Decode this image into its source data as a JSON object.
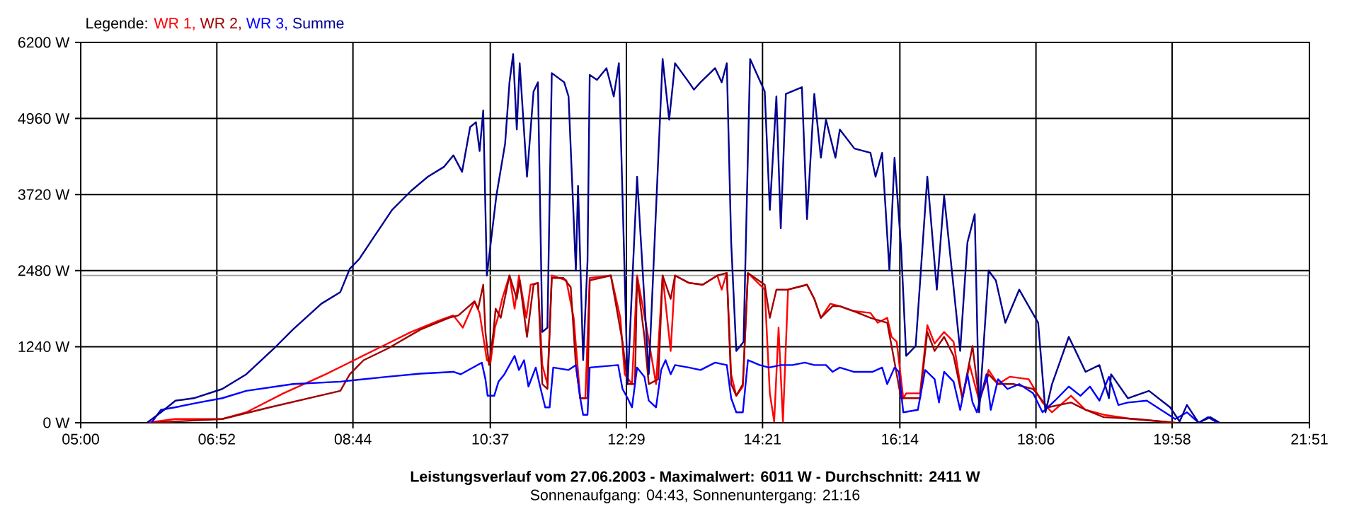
{
  "chart_data": {
    "type": "line",
    "title": "Leistungsverlauf vom 27.06.2003 - Maximalwert: 6011 W - Durchschnitt: 2411 W",
    "subtitle": "Sonnenaufgang: 04:43, Sonnenuntergang: 21:16",
    "legend_title": "Legende:",
    "legend": "top left",
    "grid": true,
    "xlim": [
      5,
      21.85
    ],
    "xticks": [
      {
        "value": 5,
        "label": "05:00"
      },
      {
        "value": 6.8667,
        "label": "06:52"
      },
      {
        "value": 8.7333,
        "label": "08:44"
      },
      {
        "value": 10.6167,
        "label": "10:37"
      },
      {
        "value": 12.4833,
        "label": "12:29"
      },
      {
        "value": 14.35,
        "label": "14:21"
      },
      {
        "value": 16.2333,
        "label": "16:14"
      },
      {
        "value": 18.1,
        "label": "18:06"
      },
      {
        "value": 19.9667,
        "label": "19:58"
      },
      {
        "value": 21.85,
        "label": "21:51"
      }
    ],
    "ylim": [
      0,
      6200
    ],
    "yticks": [
      {
        "value": 0,
        "label": "0 W"
      },
      {
        "value": 1240,
        "label": "1240 W"
      },
      {
        "value": 2480,
        "label": "2480 W"
      },
      {
        "value": 3720,
        "label": "3720 W"
      },
      {
        "value": 4960,
        "label": "4960 W"
      },
      {
        "value": 6200,
        "label": "6200 W"
      }
    ],
    "ref_lines": [
      {
        "axis": "y",
        "value": 2400,
        "color": "#a0a0a0"
      }
    ],
    "series": [
      {
        "name": "WR 1,",
        "color": "#ff0000",
        "x": [
          5.91,
          6.29,
          6.94,
          7.27,
          7.78,
          8.36,
          8.75,
          9.14,
          9.53,
          9.92,
          10.11,
          10.24,
          10.4,
          10.47,
          10.57,
          10.62,
          10.68,
          10.72,
          10.78,
          10.88,
          10.95,
          11.01,
          11.11,
          11.17,
          11.27,
          11.33,
          11.4,
          11.46,
          11.66,
          11.76,
          11.85,
          11.92,
          11.98,
          12.27,
          12.4,
          12.46,
          12.56,
          12.63,
          12.76,
          12.89,
          12.98,
          13.09,
          13.15,
          13.34,
          13.53,
          13.73,
          13.79,
          13.86,
          13.92,
          13.99,
          14.08,
          14.15,
          14.38,
          14.45,
          14.51,
          14.57,
          14.63,
          14.7,
          14.96,
          15.06,
          15.15,
          15.28,
          15.41,
          15.6,
          15.83,
          15.93,
          16.06,
          16.12,
          16.19,
          16.28,
          16.32,
          16.51,
          16.61,
          16.71,
          16.84,
          16.97,
          17.09,
          17.19,
          17.32,
          17.45,
          17.58,
          17.74,
          18.0,
          18.19,
          18.32,
          18.58,
          18.78,
          19.03,
          19.42,
          20.01
        ],
        "values": [
          0,
          60,
          60,
          170,
          480,
          790,
          1020,
          1250,
          1480,
          1670,
          1750,
          1550,
          1980,
          1790,
          1020,
          980,
          1550,
          1710,
          2020,
          2400,
          1860,
          2400,
          1710,
          2250,
          2280,
          940,
          630,
          2400,
          2320,
          1710,
          400,
          400,
          2360,
          2400,
          1710,
          790,
          630,
          2400,
          1550,
          630,
          2400,
          1170,
          2400,
          2280,
          2250,
          2400,
          2170,
          2440,
          790,
          440,
          590,
          2440,
          2170,
          480,
          20,
          1550,
          20,
          2170,
          2250,
          2020,
          1710,
          1940,
          1900,
          1820,
          1790,
          1630,
          1710,
          1400,
          1320,
          400,
          480,
          480,
          1590,
          1290,
          1480,
          1320,
          400,
          940,
          360,
          860,
          630,
          750,
          710,
          330,
          170,
          440,
          210,
          130,
          60,
          0
        ]
      },
      {
        "name": "WR 2,",
        "color": "#a00000",
        "x": [
          5.97,
          6.94,
          7.59,
          8.56,
          8.69,
          8.88,
          9.21,
          9.66,
          10.05,
          10.18,
          10.4,
          10.45,
          10.52,
          10.55,
          10.6,
          10.66,
          10.69,
          10.76,
          10.8,
          10.88,
          10.98,
          11.02,
          11.12,
          11.21,
          11.27,
          11.33,
          11.4,
          11.46,
          11.62,
          11.72,
          11.79,
          11.85,
          11.95,
          11.98,
          12.27,
          12.43,
          12.5,
          12.6,
          12.63,
          12.73,
          12.79,
          12.92,
          12.98,
          13.09,
          13.15,
          13.34,
          13.53,
          13.73,
          13.86,
          13.92,
          13.99,
          14.08,
          14.15,
          14.38,
          14.45,
          14.54,
          14.7,
          14.96,
          15.06,
          15.15,
          15.31,
          15.41,
          15.6,
          15.83,
          16.06,
          16.12,
          16.25,
          16.32,
          16.51,
          16.61,
          16.71,
          16.84,
          16.97,
          17.09,
          17.23,
          17.32,
          17.45,
          17.58,
          17.8,
          18.06,
          18.26,
          18.58,
          18.78,
          19.03,
          19.48,
          20.01
        ],
        "values": [
          0,
          60,
          250,
          520,
          790,
          1020,
          1210,
          1520,
          1710,
          1750,
          1980,
          1860,
          2250,
          1480,
          940,
          1480,
          1860,
          1710,
          1940,
          2400,
          2020,
          2320,
          1400,
          2250,
          2280,
          630,
          550,
          2360,
          2360,
          2210,
          940,
          400,
          400,
          2320,
          2400,
          1320,
          630,
          630,
          2360,
          1400,
          630,
          710,
          2400,
          2020,
          2400,
          2280,
          2250,
          2400,
          2440,
          630,
          440,
          630,
          2440,
          2250,
          1710,
          2170,
          2170,
          2250,
          2020,
          1710,
          1900,
          1900,
          1820,
          1710,
          1630,
          1250,
          400,
          400,
          400,
          1480,
          1170,
          1400,
          1090,
          400,
          1250,
          360,
          790,
          630,
          630,
          550,
          250,
          330,
          210,
          90,
          60,
          0
        ]
      },
      {
        "name": "WR 3,",
        "color": "#0000ff",
        "x": [
          5.97,
          6.1,
          6.29,
          6.62,
          6.94,
          7.27,
          7.91,
          8.56,
          9.21,
          9.66,
          10.11,
          10.21,
          10.5,
          10.55,
          10.58,
          10.67,
          10.73,
          10.81,
          10.88,
          10.95,
          11.01,
          11.08,
          11.14,
          11.24,
          11.3,
          11.37,
          11.43,
          11.48,
          11.69,
          11.79,
          11.85,
          11.89,
          11.95,
          11.98,
          12.37,
          12.43,
          12.5,
          12.56,
          12.63,
          12.73,
          12.79,
          12.89,
          12.96,
          13.02,
          13.09,
          13.15,
          13.34,
          13.5,
          13.7,
          13.86,
          13.92,
          13.99,
          14.08,
          14.15,
          14.31,
          14.44,
          14.6,
          14.76,
          14.93,
          15.06,
          15.22,
          15.31,
          15.41,
          15.6,
          15.86,
          15.99,
          16.06,
          16.16,
          16.22,
          16.28,
          16.48,
          16.58,
          16.71,
          16.77,
          16.84,
          16.97,
          17.06,
          17.16,
          17.23,
          17.29,
          17.42,
          17.48,
          17.58,
          17.71,
          17.87,
          18.06,
          18.19,
          18.36,
          18.55,
          18.71,
          18.84,
          18.97,
          19.1,
          19.23,
          19.36,
          19.62,
          20.01,
          20.17,
          20.33,
          20.46,
          20.59
        ],
        "values": [
          0,
          210,
          250,
          330,
          400,
          520,
          630,
          670,
          750,
          800,
          830,
          790,
          980,
          710,
          440,
          440,
          670,
          790,
          940,
          1090,
          860,
          1020,
          590,
          900,
          590,
          250,
          250,
          900,
          860,
          940,
          400,
          130,
          130,
          900,
          940,
          550,
          400,
          250,
          900,
          750,
          360,
          250,
          860,
          1020,
          790,
          940,
          900,
          860,
          980,
          940,
          400,
          170,
          170,
          1020,
          940,
          900,
          940,
          940,
          980,
          940,
          940,
          830,
          900,
          830,
          830,
          900,
          630,
          900,
          830,
          170,
          210,
          860,
          710,
          330,
          830,
          670,
          210,
          790,
          330,
          170,
          790,
          210,
          710,
          550,
          630,
          480,
          170,
          360,
          590,
          440,
          590,
          360,
          750,
          290,
          330,
          360,
          60,
          170,
          0,
          90,
          0
        ]
      },
      {
        "name": "Summe",
        "color": "#000090",
        "x": [
          5.91,
          6.1,
          6.3,
          6.55,
          6.94,
          7.27,
          7.65,
          7.91,
          8.3,
          8.56,
          8.69,
          8.82,
          9.01,
          9.27,
          9.53,
          9.76,
          9.98,
          10.11,
          10.23,
          10.34,
          10.42,
          10.47,
          10.52,
          10.57,
          10.7,
          10.82,
          10.88,
          10.93,
          10.98,
          11.02,
          11.12,
          11.21,
          11.27,
          11.33,
          11.4,
          11.46,
          11.63,
          11.69,
          11.79,
          11.82,
          11.89,
          11.95,
          11.98,
          12.08,
          12.21,
          12.31,
          12.38,
          12.44,
          12.5,
          12.63,
          12.79,
          12.98,
          13.07,
          13.15,
          13.34,
          13.41,
          13.5,
          13.7,
          13.79,
          13.86,
          13.92,
          13.99,
          14.09,
          14.18,
          14.38,
          14.45,
          14.54,
          14.6,
          14.67,
          14.89,
          14.96,
          15.06,
          15.15,
          15.22,
          15.35,
          15.41,
          15.61,
          15.83,
          15.9,
          15.99,
          16.09,
          16.16,
          16.25,
          16.32,
          16.45,
          16.61,
          16.74,
          16.84,
          17.06,
          17.16,
          17.26,
          17.32,
          17.45,
          17.55,
          17.68,
          17.87,
          18.13,
          18.23,
          18.32,
          18.55,
          18.78,
          18.97,
          19.1,
          19.13,
          19.36,
          19.65,
          19.94,
          20.07,
          20.17,
          20.33,
          20.49,
          20.62
        ],
        "values": [
          0,
          170,
          360,
          400,
          550,
          790,
          1210,
          1520,
          1940,
          2130,
          2510,
          2670,
          3010,
          3470,
          3780,
          4010,
          4170,
          4360,
          4090,
          4820,
          4900,
          4430,
          5090,
          2400,
          3700,
          4550,
          5550,
          6010,
          4780,
          5860,
          4010,
          5400,
          5550,
          1480,
          1550,
          5700,
          5550,
          5320,
          2480,
          3860,
          1020,
          2630,
          5670,
          5590,
          5780,
          5320,
          5860,
          3250,
          630,
          4010,
          790,
          5930,
          4940,
          5860,
          5550,
          5430,
          5550,
          5780,
          5550,
          5860,
          2940,
          1170,
          1320,
          5930,
          5400,
          3470,
          5320,
          3170,
          5360,
          5470,
          3320,
          5360,
          4320,
          4940,
          4320,
          4780,
          4470,
          4400,
          4010,
          4400,
          2480,
          4320,
          2860,
          1090,
          1250,
          4010,
          2170,
          3700,
          1170,
          2940,
          3400,
          170,
          2480,
          2320,
          1630,
          2170,
          1630,
          170,
          630,
          1400,
          830,
          940,
          400,
          790,
          400,
          520,
          250,
          20,
          290,
          0,
          90,
          0
        ]
      }
    ]
  }
}
